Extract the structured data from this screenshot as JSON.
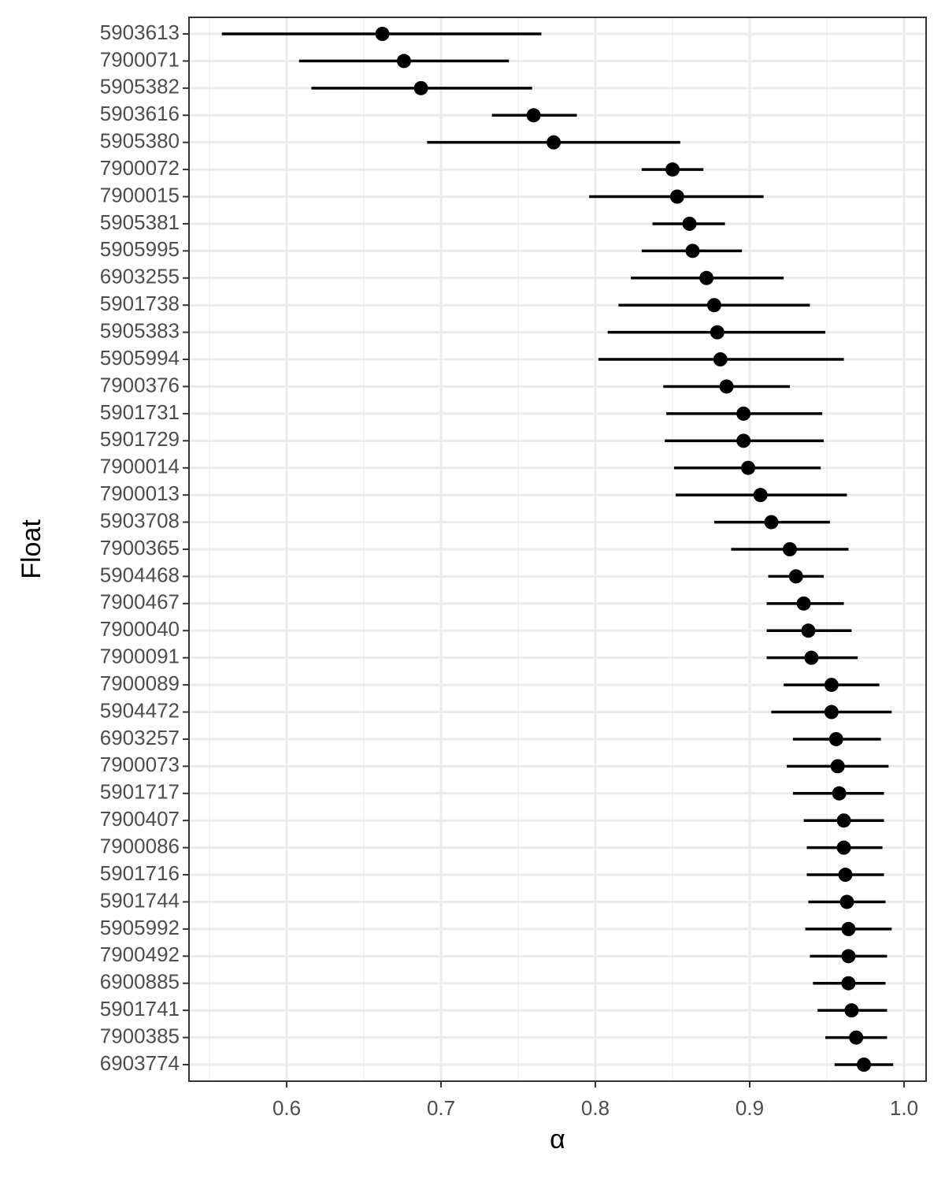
{
  "chart_data": {
    "type": "interval",
    "x_label": "α",
    "y_label": "Float",
    "categories": [
      "5903613",
      "7900071",
      "5905382",
      "5903616",
      "5905380",
      "7900072",
      "7900015",
      "5905381",
      "5905995",
      "6903255",
      "5901738",
      "5905383",
      "5905994",
      "7900376",
      "5901731",
      "5901729",
      "7900014",
      "7900013",
      "5903708",
      "7900365",
      "5904468",
      "7900467",
      "7900040",
      "7900091",
      "7900089",
      "5904472",
      "6903257",
      "7900073",
      "5901717",
      "7900407",
      "7900086",
      "5901716",
      "5901744",
      "5905992",
      "7900492",
      "6900885",
      "5901741",
      "7900385",
      "6903774"
    ],
    "values": [
      0.662,
      0.676,
      0.687,
      0.76,
      0.773,
      0.85,
      0.853,
      0.861,
      0.863,
      0.872,
      0.877,
      0.879,
      0.881,
      0.885,
      0.896,
      0.896,
      0.899,
      0.907,
      0.914,
      0.926,
      0.93,
      0.935,
      0.938,
      0.94,
      0.953,
      0.953,
      0.956,
      0.957,
      0.958,
      0.961,
      0.961,
      0.962,
      0.963,
      0.964,
      0.964,
      0.964,
      0.966,
      0.969,
      0.974
    ],
    "lower": [
      0.558,
      0.608,
      0.616,
      0.733,
      0.691,
      0.83,
      0.796,
      0.837,
      0.83,
      0.823,
      0.815,
      0.808,
      0.802,
      0.844,
      0.846,
      0.845,
      0.851,
      0.852,
      0.877,
      0.888,
      0.912,
      0.911,
      0.911,
      0.911,
      0.922,
      0.914,
      0.928,
      0.924,
      0.928,
      0.935,
      0.937,
      0.937,
      0.938,
      0.936,
      0.939,
      0.941,
      0.944,
      0.949,
      0.955
    ],
    "upper": [
      0.765,
      0.744,
      0.759,
      0.788,
      0.855,
      0.87,
      0.909,
      0.884,
      0.895,
      0.922,
      0.939,
      0.949,
      0.961,
      0.926,
      0.947,
      0.948,
      0.946,
      0.963,
      0.952,
      0.964,
      0.948,
      0.961,
      0.966,
      0.97,
      0.984,
      0.992,
      0.985,
      0.99,
      0.987,
      0.987,
      0.986,
      0.987,
      0.988,
      0.992,
      0.989,
      0.988,
      0.989,
      0.989,
      0.993
    ],
    "color": "#000000",
    "xlim": [
      0.5367,
      1.0143
    ],
    "xticks": [
      0.6,
      0.7,
      0.8,
      0.9,
      {
        "value": 1,
        "label": "1.0"
      }
    ],
    "minor_xticks": [
      0.55,
      0.65,
      0.75,
      0.85,
      0.95
    ],
    "grid": true
  }
}
